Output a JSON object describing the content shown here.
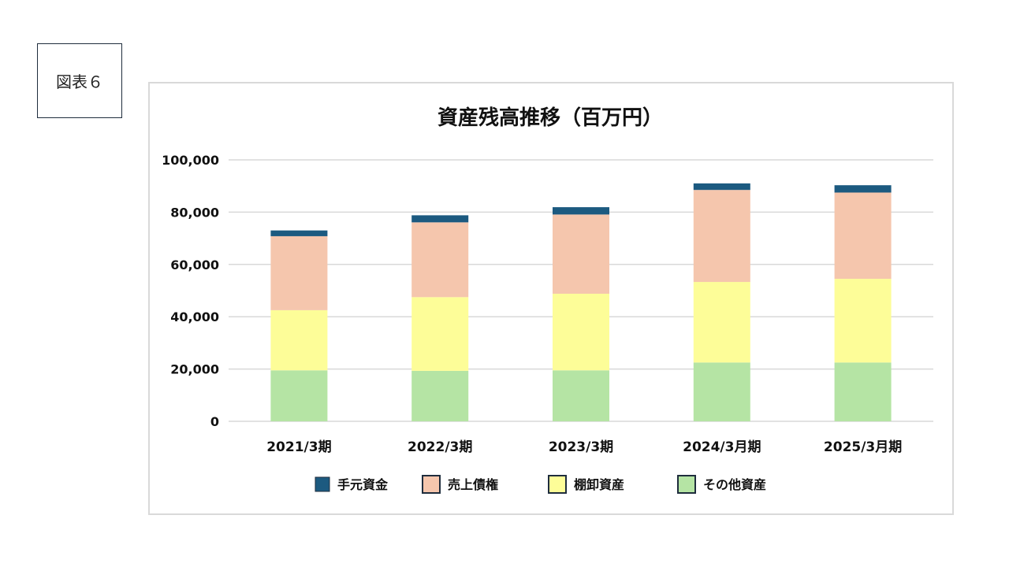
{
  "figure_label": "図表６",
  "chart_data": {
    "type": "bar",
    "stacked": true,
    "title": "資産残高推移（百万円）",
    "xlabel": "",
    "ylabel": "",
    "ylim": [
      0,
      100000
    ],
    "yticks": [
      0,
      20000,
      40000,
      60000,
      80000,
      100000
    ],
    "ytick_labels": [
      "0",
      "20,000",
      "40,000",
      "60,000",
      "80,000",
      "100,000"
    ],
    "grid": true,
    "legend_position": "bottom",
    "categories": [
      "2021/3期",
      "2022/3期",
      "2023/3期",
      "2024/3月期",
      "2025/3月期"
    ],
    "series": [
      {
        "name": "その他資産",
        "color": "#b5e4a4",
        "values": [
          19500,
          19300,
          19500,
          22500,
          22500
        ]
      },
      {
        "name": "棚卸資産",
        "color": "#fdfd98",
        "values": [
          23000,
          28200,
          29300,
          30800,
          32000
        ]
      },
      {
        "name": "売上債権",
        "color": "#f5c6ad",
        "values": [
          28300,
          28600,
          30300,
          35200,
          33000
        ]
      },
      {
        "name": "手元資金",
        "color": "#1c5a80",
        "values": [
          2200,
          2700,
          2800,
          2500,
          2800
        ]
      }
    ],
    "legend_order": [
      "手元資金",
      "売上債権",
      "棚卸資産",
      "その他資産"
    ]
  }
}
